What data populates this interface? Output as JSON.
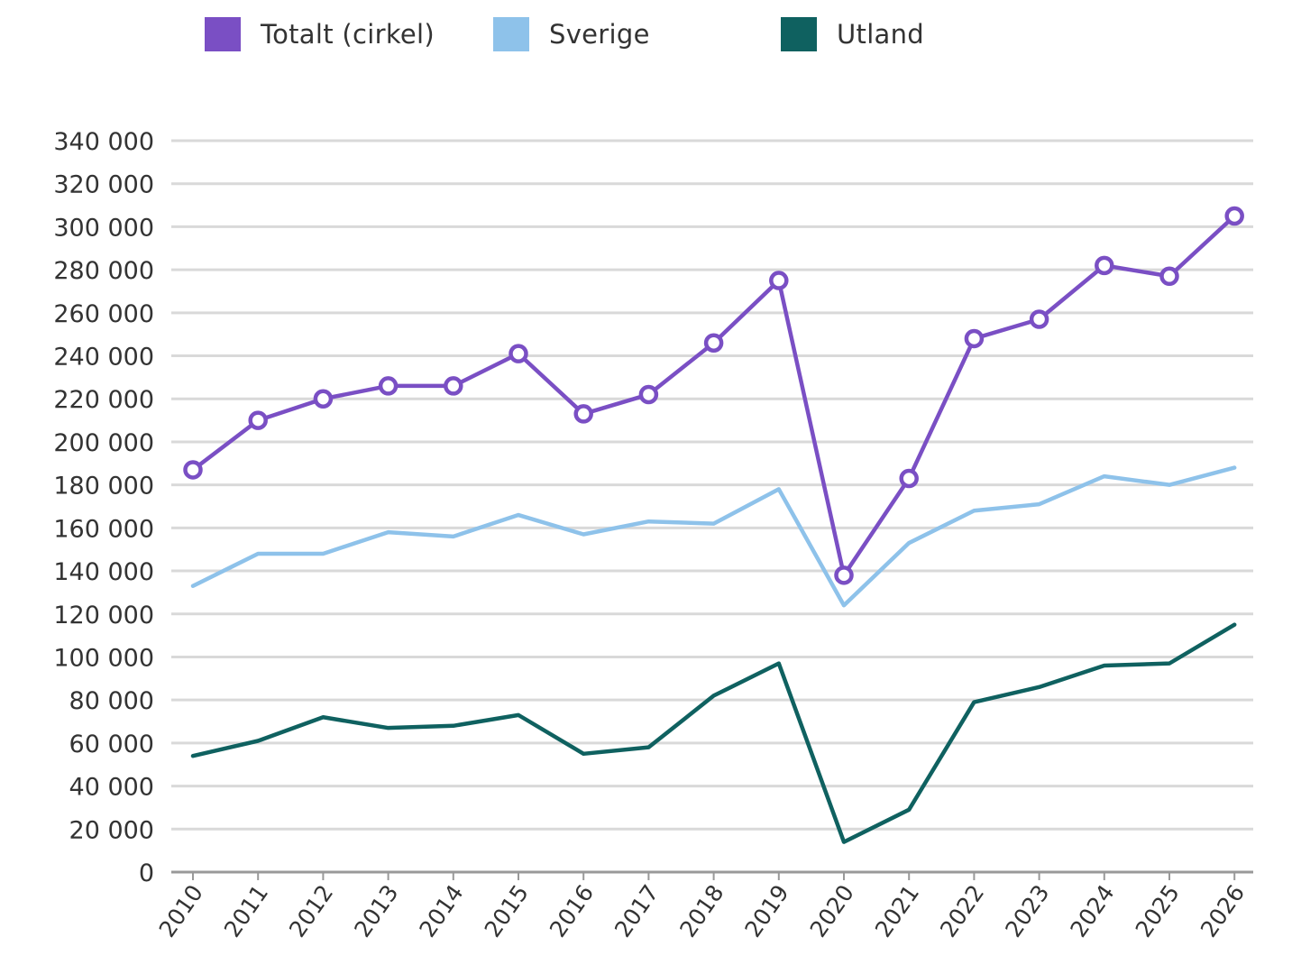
{
  "chart_data": {
    "type": "line",
    "categories": [
      "2010",
      "2011",
      "2012",
      "2013",
      "2014",
      "2015",
      "2016",
      "2017",
      "2018",
      "2019",
      "2020",
      "2021",
      "2022",
      "2023",
      "2024",
      "2025",
      "2026"
    ],
    "series": [
      {
        "name": "Totalt (cirkel)",
        "color": "#7a4fc4",
        "marker": "circle",
        "values": [
          187000,
          210000,
          220000,
          226000,
          226000,
          241000,
          213000,
          222000,
          246000,
          275000,
          138000,
          183000,
          248000,
          257000,
          282000,
          277000,
          305000
        ]
      },
      {
        "name": "Sverige",
        "color": "#8ec2ea",
        "marker": "none",
        "values": [
          133000,
          148000,
          148000,
          158000,
          156000,
          166000,
          157000,
          163000,
          162000,
          178000,
          124000,
          153000,
          168000,
          171000,
          184000,
          180000,
          188000
        ]
      },
      {
        "name": "Utland",
        "color": "#0f6160",
        "marker": "none",
        "values": [
          54000,
          61000,
          72000,
          67000,
          68000,
          73000,
          55000,
          58000,
          82000,
          97000,
          14000,
          29000,
          79000,
          86000,
          96000,
          97000,
          115000
        ]
      }
    ],
    "ylim": [
      0,
      340000
    ],
    "yticks": [
      "340 000",
      "320 000",
      "300 000",
      "280 000",
      "260 000",
      "240 000",
      "220 000",
      "200 000",
      "180 000",
      "160 000",
      "140 000",
      "120 000",
      "100 000",
      "80 000",
      "60 000",
      "40 000",
      "20 000",
      "0"
    ],
    "ytick_values": [
      340000,
      320000,
      300000,
      280000,
      260000,
      240000,
      220000,
      200000,
      180000,
      160000,
      140000,
      120000,
      100000,
      80000,
      60000,
      40000,
      20000,
      0
    ],
    "grid": true,
    "legend_position": "top",
    "xlabel": "",
    "ylabel": "",
    "title": ""
  },
  "legend": [
    {
      "label": "Totalt (cirkel)",
      "color": "#7a4fc4"
    },
    {
      "label": "Sverige",
      "color": "#8ec2ea"
    },
    {
      "label": "Utland",
      "color": "#0f6160"
    }
  ]
}
